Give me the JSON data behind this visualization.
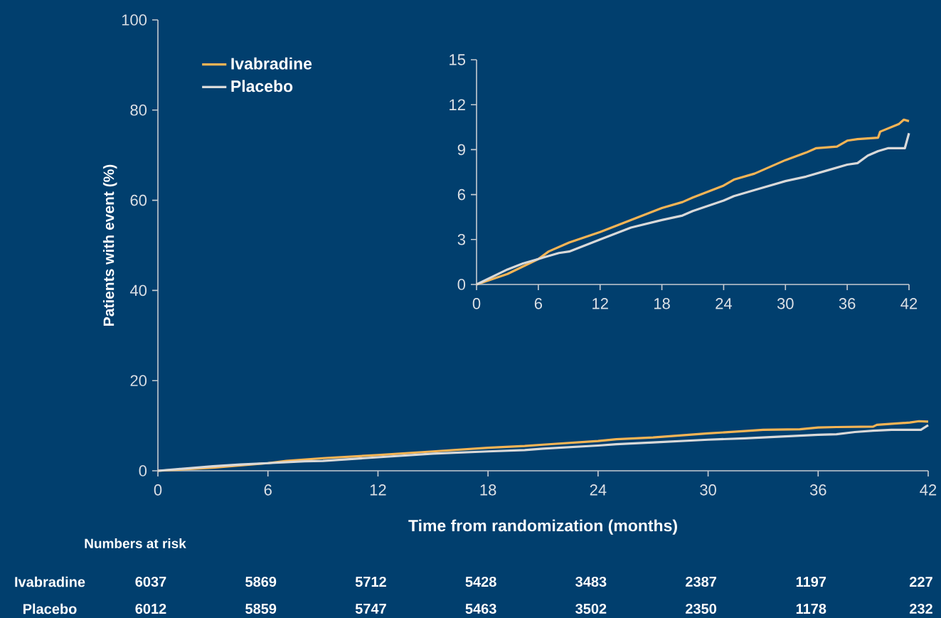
{
  "chart_data": [
    {
      "type": "line",
      "xlabel": "Time from randomization (months)",
      "ylabel": "Patients with event (%)",
      "xlim": [
        0,
        42
      ],
      "ylim": [
        0,
        100
      ],
      "xticks": [
        0,
        6,
        12,
        18,
        24,
        30,
        36,
        42
      ],
      "yticks": [
        0,
        20,
        40,
        60,
        80,
        100
      ],
      "legend": "top left",
      "annotations": [
        "Numbers at risk",
        "6037",
        "5869",
        "5712",
        "5428",
        "3483",
        "2387",
        "1197",
        "227",
        "6012",
        "5859",
        "5747",
        "5463",
        "3502",
        "2350",
        "1178",
        "232"
      ],
      "series": [
        {
          "name": "Ivabradine",
          "color": "#f5b455",
          "x": [
            0,
            3,
            6,
            7,
            9,
            12,
            15,
            18,
            20,
            21,
            24,
            25,
            27,
            30,
            32,
            33,
            35,
            36,
            37,
            39,
            39.2,
            41,
            41.5,
            42
          ],
          "values": [
            0,
            0.7,
            1.7,
            2.2,
            2.8,
            3.5,
            4.3,
            5.1,
            5.5,
            5.8,
            6.6,
            7.0,
            7.4,
            8.3,
            8.8,
            9.1,
            9.2,
            9.6,
            9.7,
            9.8,
            10.2,
            10.7,
            11.0,
            10.9
          ]
        },
        {
          "name": "Placebo",
          "color": "#d9d9d9",
          "x": [
            0,
            3,
            4.5,
            6,
            8,
            9,
            12,
            15,
            18,
            20,
            21,
            24,
            25,
            27,
            30,
            32,
            34,
            36,
            37,
            38,
            39,
            40,
            41.6,
            42
          ],
          "values": [
            0,
            1.0,
            1.4,
            1.7,
            2.1,
            2.2,
            3.0,
            3.8,
            4.3,
            4.6,
            4.9,
            5.6,
            5.9,
            6.3,
            6.9,
            7.2,
            7.6,
            8.0,
            8.1,
            8.6,
            8.9,
            9.1,
            9.1,
            10.1
          ]
        }
      ]
    },
    {
      "type": "line",
      "xlim": [
        0,
        42
      ],
      "ylim": [
        0,
        15
      ],
      "xticks": [
        0,
        6,
        12,
        18,
        24,
        30,
        36,
        42
      ],
      "yticks": [
        0,
        3,
        6,
        9,
        12,
        15
      ],
      "series": [
        {
          "color": "#f5b455",
          "x": [
            0,
            3,
            6,
            7,
            9,
            12,
            15,
            18,
            20,
            21,
            24,
            25,
            27,
            30,
            32,
            33,
            35,
            36,
            37,
            39,
            39.2,
            41,
            41.5,
            42
          ],
          "values": [
            0,
            0.7,
            1.7,
            2.2,
            2.8,
            3.5,
            4.3,
            5.1,
            5.5,
            5.8,
            6.6,
            7.0,
            7.4,
            8.3,
            8.8,
            9.1,
            9.2,
            9.6,
            9.7,
            9.8,
            10.2,
            10.7,
            11.0,
            10.9
          ]
        },
        {
          "color": "#d9d9d9",
          "x": [
            0,
            3,
            4.5,
            6,
            8,
            9,
            12,
            15,
            18,
            20,
            21,
            24,
            25,
            27,
            30,
            32,
            34,
            36,
            37,
            38,
            39,
            40,
            41.6,
            42
          ],
          "values": [
            0,
            1.0,
            1.4,
            1.7,
            2.1,
            2.2,
            3.0,
            3.8,
            4.3,
            4.6,
            4.9,
            5.6,
            5.9,
            6.3,
            6.9,
            7.2,
            7.6,
            8.0,
            8.1,
            8.6,
            8.9,
            9.1,
            9.1,
            10.1
          ]
        }
      ]
    }
  ]
}
